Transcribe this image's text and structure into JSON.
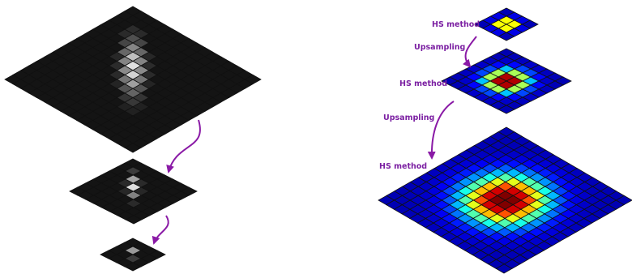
{
  "labels": {
    "hs_top": "HS method",
    "upsampling_1": "Upsampling",
    "hs_mid": "HS method",
    "upsampling_2": "Upsampling",
    "hs_bottom": "HS method"
  },
  "colors": {
    "arrow": "#8a1aa6",
    "label": "#7b1fa2",
    "grid_line": "#111111",
    "dark_cell": "#141414"
  },
  "colormap": "jet",
  "image_pyramid": {
    "levels": [
      {
        "name": "full-resolution-image",
        "grid": 16
      },
      {
        "name": "half-resolution-image",
        "grid": 8
      },
      {
        "name": "quarter-resolution-image",
        "grid": 4
      }
    ]
  },
  "flow_pyramid": {
    "levels": [
      {
        "name": "coarse-flow-grid",
        "grid": 4
      },
      {
        "name": "medium-flow-grid",
        "grid": 8
      },
      {
        "name": "fine-flow-grid",
        "grid": 16
      }
    ]
  }
}
